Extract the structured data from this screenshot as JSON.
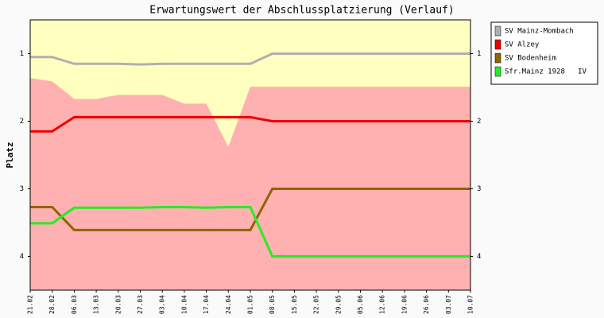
{
  "chart_data": {
    "type": "line",
    "title": "Erwartungswert der Abschlussplatzierung (Verlauf)",
    "y_label": "Platz",
    "categories": [
      "21.02",
      "28.02",
      "06.03",
      "13.03",
      "20.03",
      "27.03",
      "03.04",
      "10.04",
      "17.04",
      "24.04",
      "01.05",
      "08.05",
      "15.05",
      "22.05",
      "29.05",
      "05.06",
      "12.06",
      "19.06",
      "26.06",
      "03.07",
      "10.07"
    ],
    "ylim": [
      0.5,
      4.5
    ],
    "y_inverted": true,
    "yticks": [
      1,
      2,
      3,
      4
    ],
    "plot_background": "#ffffc0",
    "area": {
      "color": "#ffb0b0",
      "values": [
        1.36,
        1.41,
        1.67,
        1.67,
        1.61,
        1.61,
        1.61,
        1.74,
        1.74,
        2.38,
        1.49,
        1.49,
        1.49,
        1.49,
        1.49,
        1.49,
        1.49,
        1.49,
        1.49,
        1.49,
        1.49
      ]
    },
    "series": [
      {
        "name": "SV Mainz-Mombach",
        "color": "#b0b0b0",
        "values": [
          1.05,
          1.05,
          1.15,
          1.15,
          1.15,
          1.16,
          1.15,
          1.15,
          1.15,
          1.15,
          1.15,
          1.0,
          1.0,
          1.0,
          1.0,
          1.0,
          1.0,
          1.0,
          1.0,
          1.0,
          1.0
        ]
      },
      {
        "name": "SV Alzey",
        "color": "#ee0000",
        "values": [
          2.15,
          2.15,
          1.94,
          1.94,
          1.94,
          1.94,
          1.94,
          1.94,
          1.94,
          1.94,
          1.94,
          2.0,
          2.0,
          2.0,
          2.0,
          2.0,
          2.0,
          2.0,
          2.0,
          2.0,
          2.0
        ]
      },
      {
        "name": "SV Bodenheim",
        "color": "#8b6508",
        "values": [
          3.27,
          3.27,
          3.61,
          3.61,
          3.61,
          3.61,
          3.61,
          3.61,
          3.61,
          3.61,
          3.61,
          3.0,
          3.0,
          3.0,
          3.0,
          3.0,
          3.0,
          3.0,
          3.0,
          3.0,
          3.0
        ]
      },
      {
        "name": "Sfr.Mainz 1928   IV",
        "color": "#22ee22",
        "values": [
          3.51,
          3.51,
          3.28,
          3.28,
          3.28,
          3.28,
          3.27,
          3.27,
          3.28,
          3.27,
          3.27,
          4.0,
          4.0,
          4.0,
          4.0,
          4.0,
          4.0,
          4.0,
          4.0,
          4.0,
          4.0
        ]
      }
    ]
  }
}
